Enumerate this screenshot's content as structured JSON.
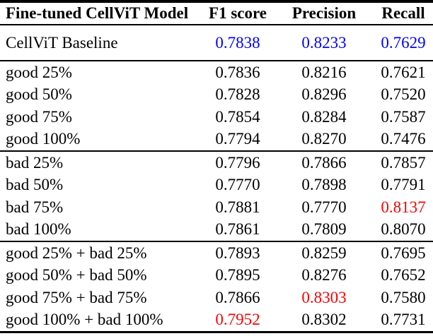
{
  "colors": {
    "blue": "#0000ff",
    "red": "#ff0000",
    "text": "#000000",
    "rule": "#000000",
    "background": "#ffffff"
  },
  "header": {
    "model": "Fine-tuned CellViT Model",
    "f1": "F1 score",
    "precision": "Precision",
    "recall": "Recall"
  },
  "baseline": {
    "label": "CellViT Baseline",
    "f1": "0.7838",
    "precision": "0.8233",
    "recall": "0.7629"
  },
  "sections": [
    {
      "rows": [
        {
          "label": "good 25%",
          "f1": "0.7836",
          "precision": "0.8216",
          "recall": "0.7621"
        },
        {
          "label": "good 50%",
          "f1": "0.7828",
          "precision": "0.8296",
          "recall": "0.7520"
        },
        {
          "label": "good 75%",
          "f1": "0.7854",
          "precision": "0.8284",
          "recall": "0.7587"
        },
        {
          "label": "good 100%",
          "f1": "0.7794",
          "precision": "0.8270",
          "recall": "0.7476"
        }
      ]
    },
    {
      "rows": [
        {
          "label": "bad 25%",
          "f1": "0.7796",
          "precision": "0.7866",
          "recall": "0.7857"
        },
        {
          "label": "bad 50%",
          "f1": "0.7770",
          "precision": "0.7898",
          "recall": "0.7791"
        },
        {
          "label": "bad 75%",
          "f1": "0.7881",
          "precision": "0.7770",
          "recall": "0.8137"
        },
        {
          "label": "bad 100%",
          "f1": "0.7861",
          "precision": "0.7809",
          "recall": "0.8070"
        }
      ]
    },
    {
      "rows": [
        {
          "label": "good 25% + bad 25%",
          "f1": "0.7893",
          "precision": "0.8259",
          "recall": "0.7695"
        },
        {
          "label": "good 50% + bad 50%",
          "f1": "0.7895",
          "precision": "0.8276",
          "recall": "0.7652"
        },
        {
          "label": "good 75% + bad 75%",
          "f1": "0.7866",
          "precision": "0.8303",
          "recall": "0.7580"
        },
        {
          "label": "good 100% + bad 100%",
          "f1": "0.7952",
          "precision": "0.8302",
          "recall": "0.7731"
        }
      ]
    }
  ]
}
